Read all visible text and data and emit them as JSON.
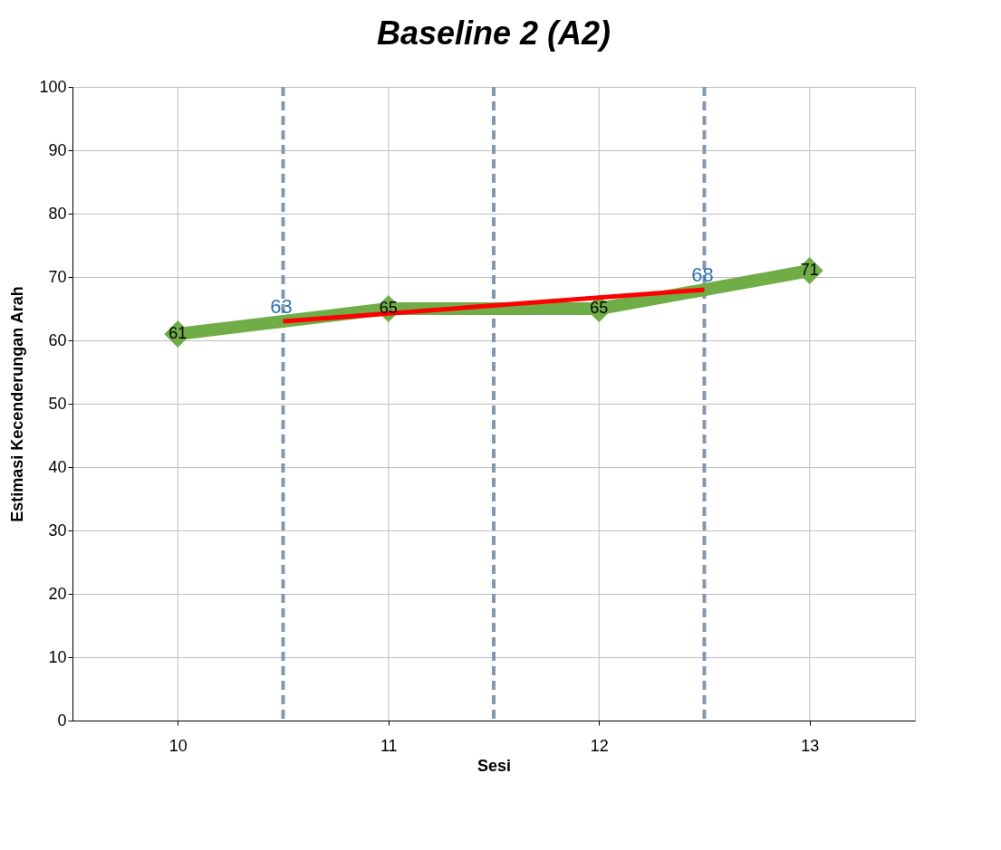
{
  "chart_data": {
    "type": "line",
    "title": "Baseline 2 (A2)",
    "xlabel": "Sesi",
    "ylabel": "Estimasi Kecenderungan Arah",
    "x": [
      10,
      11,
      12,
      13
    ],
    "series": [
      {
        "color": "#70ad47",
        "values": [
          61,
          65,
          65,
          71
        ],
        "marker": "diamond",
        "value_labels": [
          "61",
          "65",
          "65",
          "71"
        ]
      },
      {
        "color": "#ff0000",
        "x": [
          10.5,
          12.5
        ],
        "values": [
          63,
          68
        ],
        "marker": "none",
        "value_labels": [
          "63",
          "68"
        ]
      }
    ],
    "xlim": [
      9.5,
      13.5
    ],
    "xticks": [
      10,
      11,
      12,
      13
    ],
    "ylim": [
      0,
      100
    ],
    "yticks": [
      0,
      10,
      20,
      30,
      40,
      50,
      60,
      70,
      80,
      90,
      100
    ],
    "ref_lines": [
      {
        "axis": "x",
        "value": 10.5,
        "color": "#8497b0",
        "line_style": "dashed"
      },
      {
        "axis": "x",
        "value": 11.5,
        "color": "#8497b0",
        "line_style": "dashed"
      },
      {
        "axis": "x",
        "value": 12.5,
        "color": "#8497b0",
        "line_style": "dashed"
      }
    ],
    "grid": true
  }
}
